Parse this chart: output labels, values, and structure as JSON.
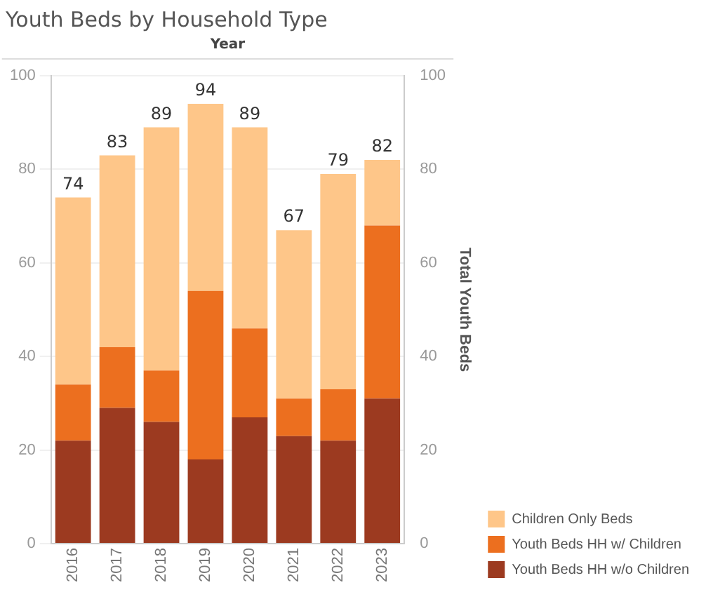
{
  "chart_data": {
    "type": "bar",
    "title": "Youth Beds by Household Type",
    "xlabel": "Year",
    "y2label": "Total Youth Beds",
    "categories": [
      "2016",
      "2017",
      "2018",
      "2019",
      "2020",
      "2021",
      "2022",
      "2023"
    ],
    "stacked": true,
    "series": [
      {
        "name": "Youth Beds HH w/o Children",
        "color": "#9c3a20",
        "values": [
          22,
          29,
          26,
          18,
          27,
          23,
          22,
          31
        ]
      },
      {
        "name": "Youth Beds HH w/ Children",
        "color": "#ec6f1f",
        "values": [
          12,
          13,
          11,
          36,
          19,
          8,
          11,
          37
        ]
      },
      {
        "name": "Children Only Beds",
        "color": "#fec689",
        "values": [
          40,
          41,
          52,
          40,
          43,
          36,
          46,
          14
        ]
      }
    ],
    "totals": [
      "74",
      "83",
      "89",
      "94",
      "89",
      "67",
      "79",
      "82"
    ],
    "ylim": [
      0,
      100
    ],
    "yticks": [
      0,
      20,
      40,
      60,
      80,
      100
    ],
    "y2lim": [
      0,
      100
    ],
    "y2ticks": [
      0,
      20,
      40,
      60,
      80,
      100
    ],
    "grid": "y",
    "legend": "bottom right"
  }
}
